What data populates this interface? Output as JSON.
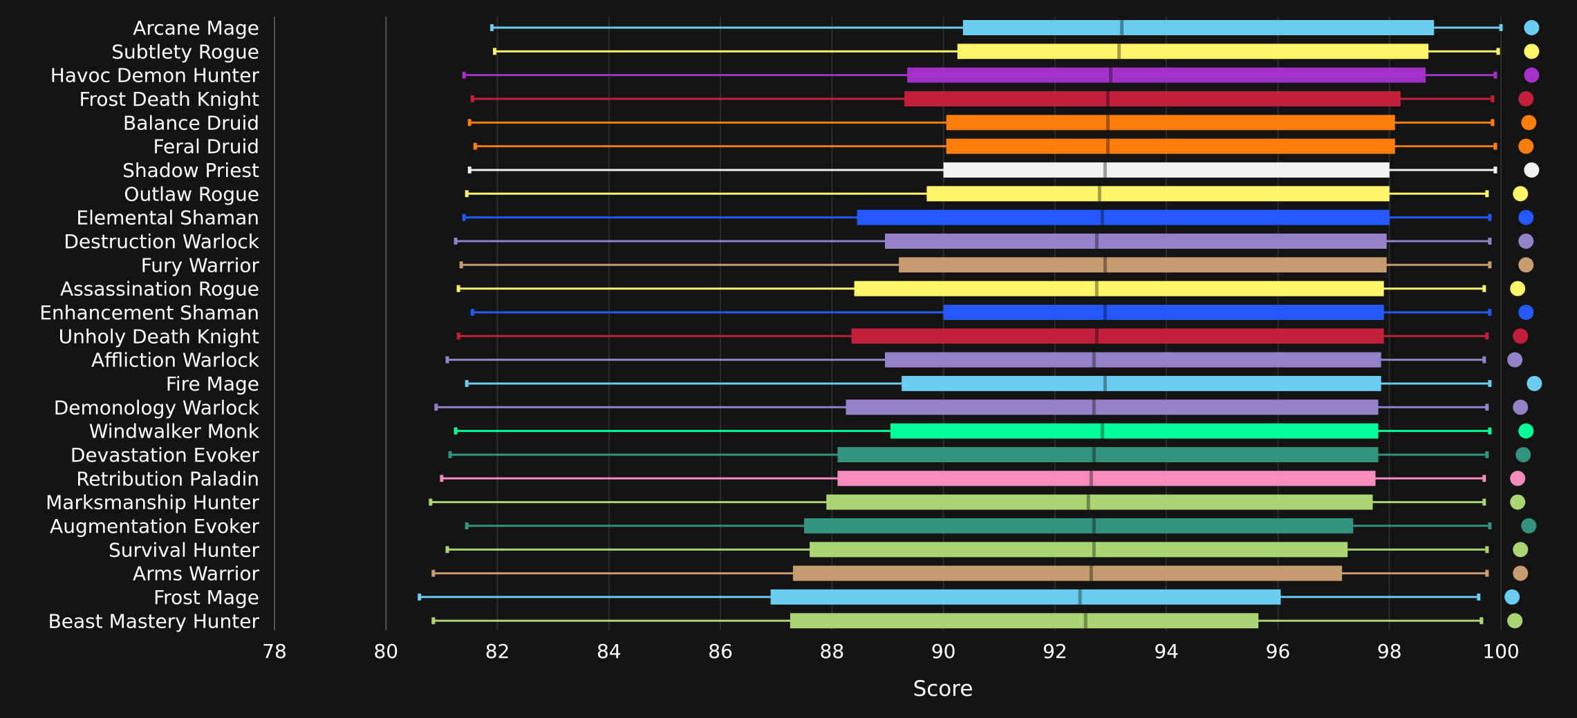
{
  "chart_data": {
    "type": "box",
    "xlabel": "Score",
    "ylabel": "",
    "xlim": [
      78,
      100
    ],
    "xticks": [
      "78",
      "80",
      "82",
      "84",
      "86",
      "88",
      "90",
      "92",
      "94",
      "96",
      "98",
      "100"
    ],
    "grid": "vertical",
    "legend": "none",
    "background": "#141414",
    "categories": [
      {
        "name": "Arcane Mage",
        "color": "#69ccf0",
        "min": 81.9,
        "q1": 90.35,
        "median": 93.2,
        "q3": 98.8,
        "max": 100.0,
        "point": 100.55
      },
      {
        "name": "Subtlety Rogue",
        "color": "#fff569",
        "min": 81.95,
        "q1": 90.25,
        "median": 93.15,
        "q3": 98.7,
        "max": 99.95,
        "point": 100.55
      },
      {
        "name": "Havoc Demon Hunter",
        "color": "#a330c9",
        "min": 81.4,
        "q1": 89.35,
        "median": 93.0,
        "q3": 98.65,
        "max": 99.9,
        "point": 100.55
      },
      {
        "name": "Frost Death Knight",
        "color": "#c41f3b",
        "min": 81.55,
        "q1": 89.3,
        "median": 92.95,
        "q3": 98.2,
        "max": 99.85,
        "point": 100.45
      },
      {
        "name": "Balance Druid",
        "color": "#ff7d0a",
        "min": 81.5,
        "q1": 90.05,
        "median": 92.95,
        "q3": 98.1,
        "max": 99.85,
        "point": 100.5
      },
      {
        "name": "Feral Druid",
        "color": "#ff7d0a",
        "min": 81.6,
        "q1": 90.05,
        "median": 92.95,
        "q3": 98.1,
        "max": 99.9,
        "point": 100.45
      },
      {
        "name": "Shadow Priest",
        "color": "#f0f0f0",
        "min": 81.5,
        "q1": 90.0,
        "median": 92.9,
        "q3": 98.0,
        "max": 99.9,
        "point": 100.55
      },
      {
        "name": "Outlaw Rogue",
        "color": "#fff569",
        "min": 81.45,
        "q1": 89.7,
        "median": 92.8,
        "q3": 98.0,
        "max": 99.75,
        "point": 100.35
      },
      {
        "name": "Elemental Shaman",
        "color": "#2359ff",
        "min": 81.4,
        "q1": 88.45,
        "median": 92.85,
        "q3": 98.0,
        "max": 99.8,
        "point": 100.45
      },
      {
        "name": "Destruction Warlock",
        "color": "#9482c9",
        "min": 81.25,
        "q1": 88.95,
        "median": 92.75,
        "q3": 97.95,
        "max": 99.8,
        "point": 100.45
      },
      {
        "name": "Fury Warrior",
        "color": "#c79c6e",
        "min": 81.35,
        "q1": 89.2,
        "median": 92.9,
        "q3": 97.95,
        "max": 99.8,
        "point": 100.45
      },
      {
        "name": "Assassination Rogue",
        "color": "#fff569",
        "min": 81.3,
        "q1": 88.4,
        "median": 92.75,
        "q3": 97.9,
        "max": 99.7,
        "point": 100.3
      },
      {
        "name": "Enhancement Shaman",
        "color": "#2359ff",
        "min": 81.55,
        "q1": 90.0,
        "median": 92.9,
        "q3": 97.9,
        "max": 99.8,
        "point": 100.45
      },
      {
        "name": "Unholy Death Knight",
        "color": "#c41f3b",
        "min": 81.3,
        "q1": 88.35,
        "median": 92.75,
        "q3": 97.9,
        "max": 99.75,
        "point": 100.35
      },
      {
        "name": "Affliction Warlock",
        "color": "#9482c9",
        "min": 81.1,
        "q1": 88.95,
        "median": 92.7,
        "q3": 97.85,
        "max": 99.7,
        "point": 100.25
      },
      {
        "name": "Fire Mage",
        "color": "#69ccf0",
        "min": 81.45,
        "q1": 89.25,
        "median": 92.9,
        "q3": 97.85,
        "max": 99.8,
        "point": 100.6
      },
      {
        "name": "Demonology Warlock",
        "color": "#9482c9",
        "min": 80.9,
        "q1": 88.25,
        "median": 92.7,
        "q3": 97.8,
        "max": 99.75,
        "point": 100.35
      },
      {
        "name": "Windwalker Monk",
        "color": "#00ff96",
        "min": 81.25,
        "q1": 89.05,
        "median": 92.85,
        "q3": 97.8,
        "max": 99.8,
        "point": 100.45
      },
      {
        "name": "Devastation Evoker",
        "color": "#33937f",
        "min": 81.15,
        "q1": 88.1,
        "median": 92.7,
        "q3": 97.8,
        "max": 99.75,
        "point": 100.4
      },
      {
        "name": "Retribution Paladin",
        "color": "#f58cba",
        "min": 81.0,
        "q1": 88.1,
        "median": 92.65,
        "q3": 97.75,
        "max": 99.7,
        "point": 100.3
      },
      {
        "name": "Marksmanship Hunter",
        "color": "#abd473",
        "min": 80.8,
        "q1": 87.9,
        "median": 92.6,
        "q3": 97.7,
        "max": 99.7,
        "point": 100.3
      },
      {
        "name": "Augmentation Evoker",
        "color": "#33937f",
        "min": 81.45,
        "q1": 87.5,
        "median": 92.7,
        "q3": 97.35,
        "max": 99.8,
        "point": 100.5
      },
      {
        "name": "Survival Hunter",
        "color": "#abd473",
        "min": 81.1,
        "q1": 87.6,
        "median": 92.7,
        "q3": 97.25,
        "max": 99.75,
        "point": 100.35
      },
      {
        "name": "Arms Warrior",
        "color": "#c79c6e",
        "min": 80.85,
        "q1": 87.3,
        "median": 92.65,
        "q3": 97.15,
        "max": 99.75,
        "point": 100.35
      },
      {
        "name": "Frost Mage",
        "color": "#69ccf0",
        "min": 80.6,
        "q1": 86.9,
        "median": 92.45,
        "q3": 96.05,
        "max": 99.6,
        "point": 100.2
      },
      {
        "name": "Beast Mastery Hunter",
        "color": "#abd473",
        "min": 80.85,
        "q1": 87.25,
        "median": 92.55,
        "q3": 95.65,
        "max": 99.65,
        "point": 100.25
      }
    ]
  }
}
